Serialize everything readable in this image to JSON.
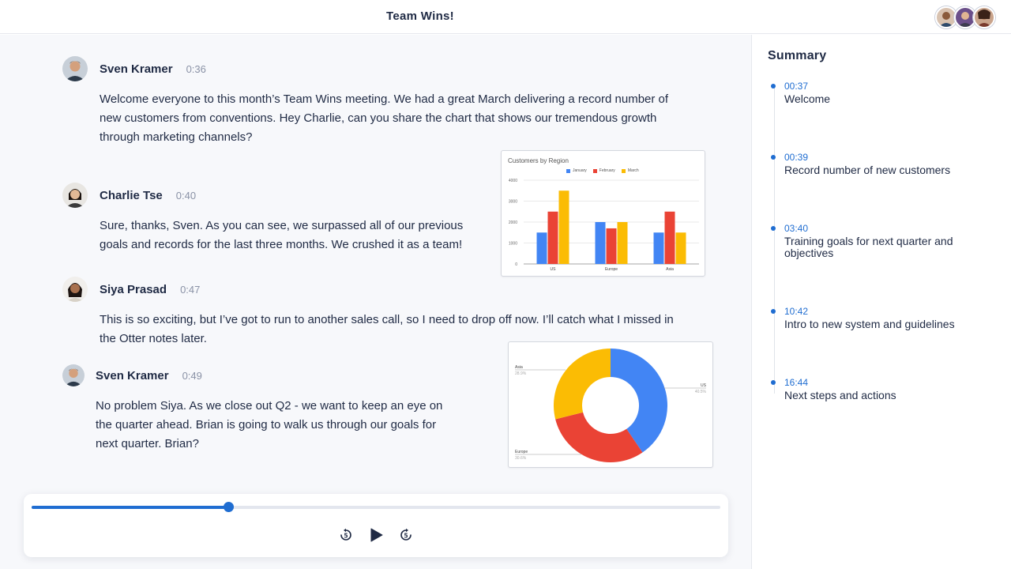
{
  "header": {
    "title": "Team Wins!",
    "participants": [
      "participant-1",
      "participant-2",
      "participant-3"
    ]
  },
  "transcript": [
    {
      "name": "Sven Kramer",
      "time": "0:36",
      "text": "Welcome everyone to this month’s Team Wins meeting. We had a great March delivering a record number of new customers from conventions. Hey Charlie, can you share the chart that shows our tremendous growth through marketing channels?"
    },
    {
      "name": "Charlie Tse",
      "time": "0:40",
      "text": "Sure, thanks, Sven. As you can see, we surpassed all of our previous goals and records for the last three months. We crushed it as a team!"
    },
    {
      "name": "Siya Prasad",
      "time": "0:47",
      "text": "This is so exciting, but I’ve got to run to another sales call, so I need to drop off now. I’ll catch what I missed in the Otter notes later."
    },
    {
      "name": "Sven Kramer",
      "time": "0:49",
      "text": "No problem Siya. As we close out Q2 - we want to keep an eye on the quarter ahead. Brian is going to walk us through our goals for next quarter. Brian?"
    }
  ],
  "chart_data": [
    {
      "type": "bar",
      "title": "Customers by Region",
      "categories": [
        "US",
        "Europe",
        "Asia"
      ],
      "series": [
        {
          "name": "January",
          "values": [
            1500,
            2000,
            1500
          ],
          "color": "#4285f4"
        },
        {
          "name": "February",
          "values": [
            2500,
            1700,
            2500
          ],
          "color": "#ea4335"
        },
        {
          "name": "March",
          "values": [
            3500,
            2000,
            1500
          ],
          "color": "#fbbc04"
        }
      ],
      "ylim": [
        0,
        4000
      ],
      "yticks": [
        "0",
        "1000",
        "2000",
        "3000",
        "4000"
      ],
      "legend": "top"
    },
    {
      "type": "pie",
      "title": "",
      "donut": true,
      "slices": [
        {
          "label": "US",
          "value": 40.5,
          "pct_label": "40.5%",
          "color": "#4285f4"
        },
        {
          "label": "Europe",
          "value": 30.6,
          "pct_label": "30.6%",
          "color": "#ea4335"
        },
        {
          "label": "Asia",
          "value": 28.9,
          "pct_label": "28.9%",
          "color": "#fbbc04"
        }
      ]
    }
  ],
  "player": {
    "progress": 0.285,
    "rewind_icon": "rewind-5-icon",
    "play_icon": "play-icon",
    "forward_icon": "forward-5-icon"
  },
  "summary": {
    "title": "Summary",
    "items": [
      {
        "time": "00:37",
        "label": "Welcome"
      },
      {
        "time": "00:39",
        "label": "Record number of new customers"
      },
      {
        "time": "03:40",
        "label": "Training goals for next quarter and objectives"
      },
      {
        "time": "10:42",
        "label": "Intro to new system and guidelines"
      },
      {
        "time": "16:44",
        "label": "Next steps and actions"
      }
    ]
  },
  "colors": {
    "accent": "#1f6dd1",
    "text": "#1f2a44",
    "muted": "#8a92a6"
  }
}
